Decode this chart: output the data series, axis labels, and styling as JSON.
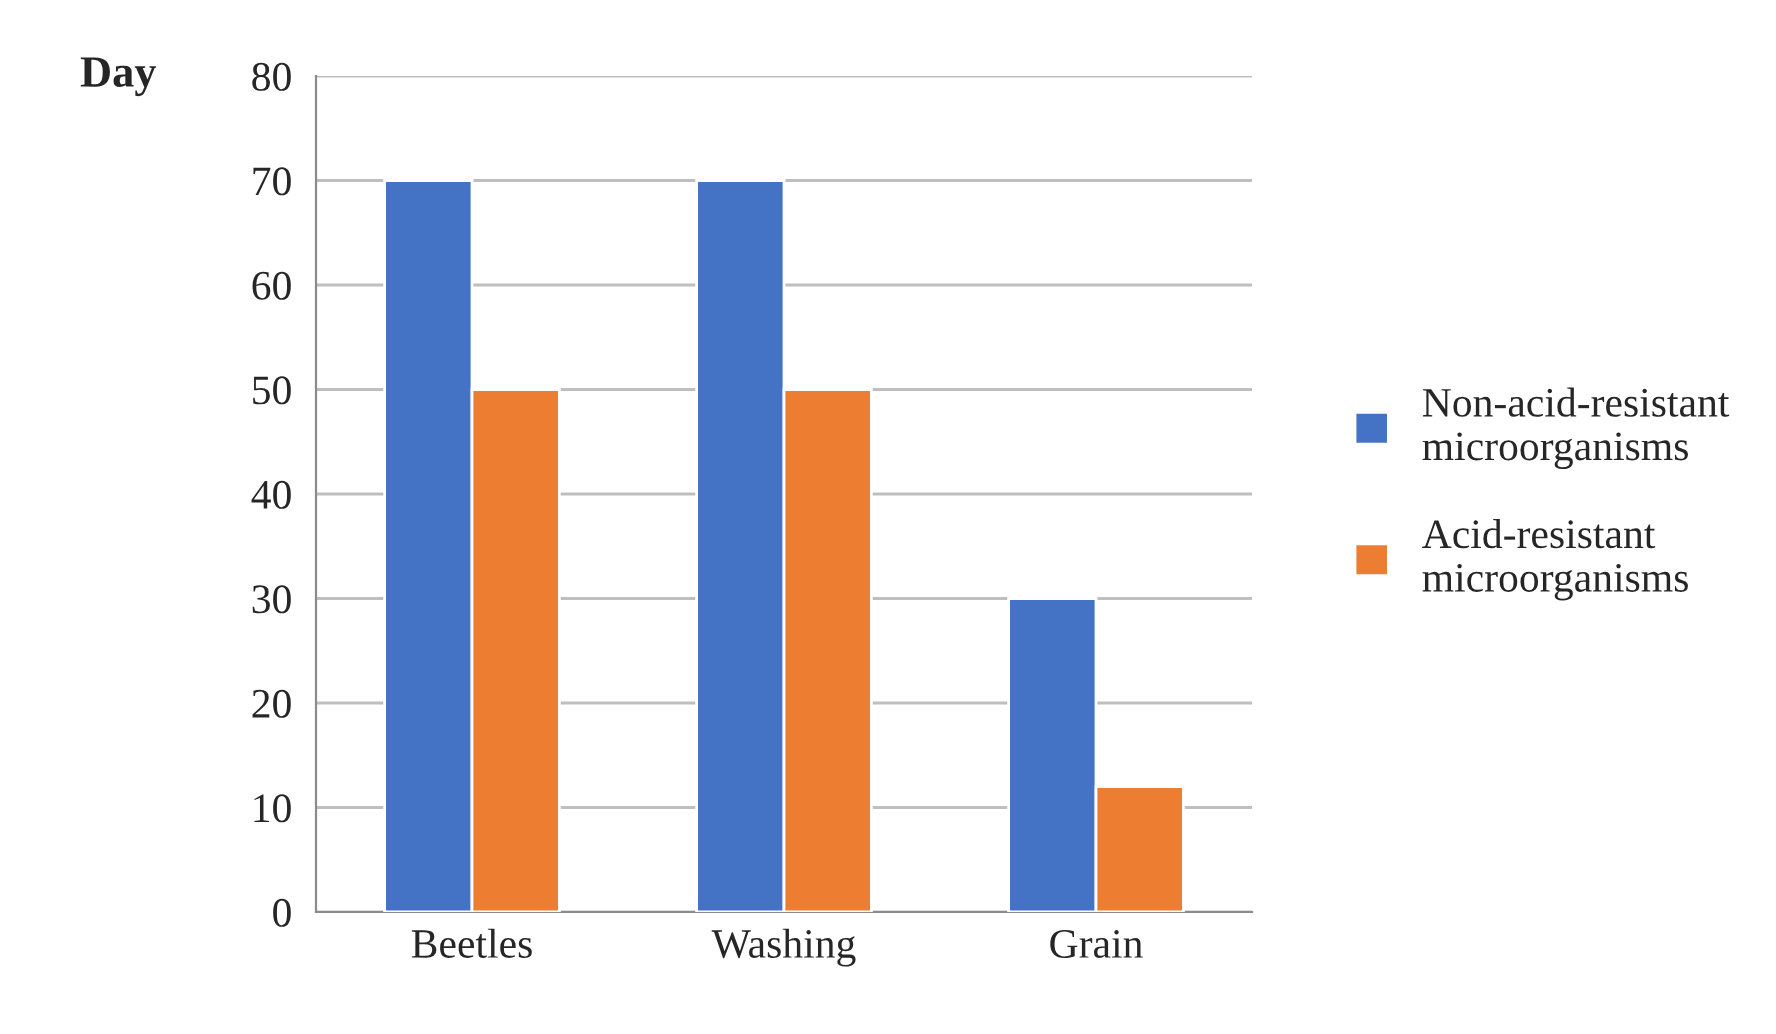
{
  "chart_data": {
    "type": "bar",
    "ylabel": "Day",
    "categories": [
      "Beetles",
      "Washing",
      "Grain"
    ],
    "series": [
      {
        "name": "Non-acid-resistant\nmicroorganisms",
        "color": "#4472c4",
        "values": [
          70,
          70,
          30
        ]
      },
      {
        "name": "Acid-resistant\nmicroorganisms",
        "color": "#ed7d31",
        "values": [
          50,
          50,
          12
        ]
      }
    ],
    "ylim": [
      0,
      80
    ],
    "yticks": [
      0,
      10,
      20,
      30,
      40,
      50,
      60,
      70,
      80
    ],
    "grid": "y",
    "legend": "right"
  }
}
